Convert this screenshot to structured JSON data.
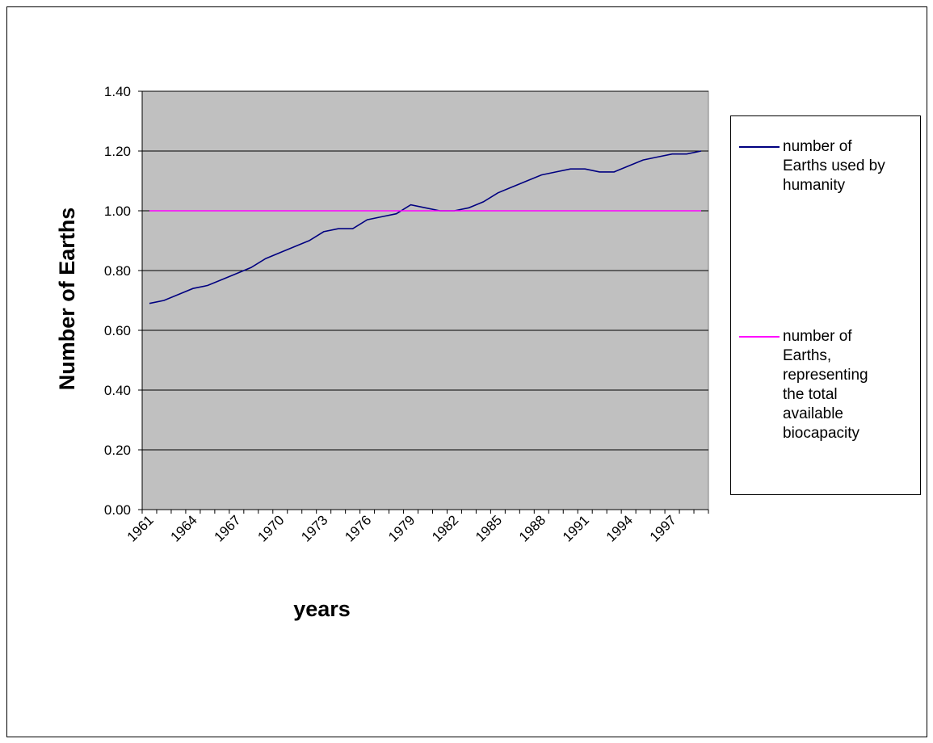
{
  "chart_data": {
    "type": "line",
    "title": "",
    "xlabel": "years",
    "ylabel": "Number of Earths",
    "ylim": [
      0,
      1.4
    ],
    "y_ticks": [
      "0.00",
      "0.20",
      "0.40",
      "0.60",
      "0.80",
      "1.00",
      "1.20",
      "1.40"
    ],
    "x_tick_labels": [
      "1961",
      "1964",
      "1967",
      "1970",
      "1973",
      "1976",
      "1979",
      "1982",
      "1985",
      "1988",
      "1991",
      "1994",
      "1997"
    ],
    "x": [
      1961,
      1962,
      1963,
      1964,
      1965,
      1966,
      1967,
      1968,
      1969,
      1970,
      1971,
      1972,
      1973,
      1974,
      1975,
      1976,
      1977,
      1978,
      1979,
      1980,
      1981,
      1982,
      1983,
      1984,
      1985,
      1986,
      1987,
      1988,
      1989,
      1990,
      1991,
      1992,
      1993,
      1994,
      1995,
      1996,
      1997,
      1998,
      1999
    ],
    "series": [
      {
        "name": "number of Earths used by humanity",
        "color": "#000080",
        "values": [
          0.69,
          0.7,
          0.72,
          0.74,
          0.75,
          0.77,
          0.79,
          0.81,
          0.84,
          0.86,
          0.88,
          0.9,
          0.93,
          0.94,
          0.94,
          0.97,
          0.98,
          0.99,
          1.02,
          1.01,
          1.0,
          1.0,
          1.01,
          1.03,
          1.06,
          1.08,
          1.1,
          1.12,
          1.13,
          1.14,
          1.14,
          1.13,
          1.13,
          1.15,
          1.17,
          1.18,
          1.19,
          1.19,
          1.2
        ]
      },
      {
        "name": "number of Earths, representing the total available biocapacity",
        "color": "#ff00ff",
        "values": [
          1.0,
          1.0,
          1.0,
          1.0,
          1.0,
          1.0,
          1.0,
          1.0,
          1.0,
          1.0,
          1.0,
          1.0,
          1.0,
          1.0,
          1.0,
          1.0,
          1.0,
          1.0,
          1.0,
          1.0,
          1.0,
          1.0,
          1.0,
          1.0,
          1.0,
          1.0,
          1.0,
          1.0,
          1.0,
          1.0,
          1.0,
          1.0,
          1.0,
          1.0,
          1.0,
          1.0,
          1.0,
          1.0,
          1.0
        ]
      }
    ],
    "grid": true,
    "plot_background": "#c0c0c0",
    "legend_position": "right"
  },
  "legend": {
    "item1_lines": [
      "number of",
      "Earths used by",
      "humanity"
    ],
    "item2_lines": [
      "number of",
      "Earths,",
      "representing",
      "the total",
      "available",
      "biocapacity"
    ]
  }
}
